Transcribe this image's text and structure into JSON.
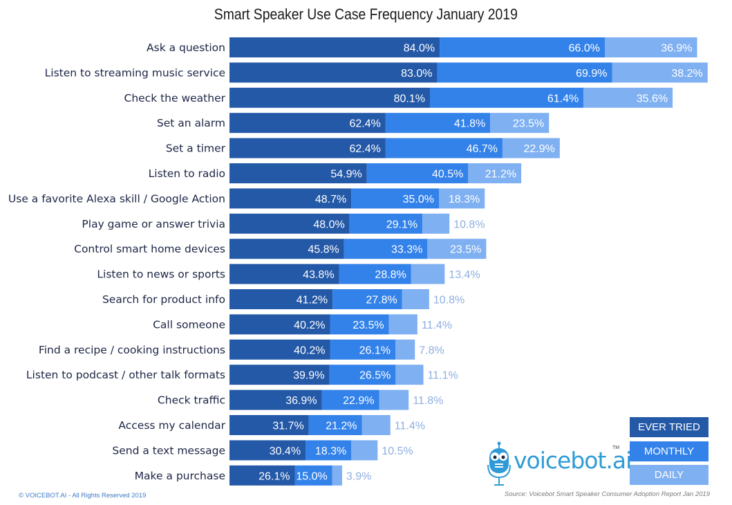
{
  "chart_data": {
    "type": "bar",
    "orientation": "horizontal",
    "stacked": true,
    "title": "Smart Speaker Use Case Frequency January 2019",
    "xlabel": "",
    "ylabel": "",
    "grid": false,
    "legend_position": "bottom-right",
    "categories": [
      "Ask a question",
      "Listen to streaming music service",
      "Check the weather",
      "Set an alarm",
      "Set a timer",
      "Listen to radio",
      "Use a favorite Alexa skill / Google Action",
      "Play game or answer trivia",
      "Control smart home devices",
      "Listen to news or sports",
      "Search for product info",
      "Call someone",
      "Find a recipe / cooking instructions",
      "Listen to podcast / other talk formats",
      "Check traffic",
      "Access my calendar",
      "Send a text message",
      "Make a purchase"
    ],
    "series": [
      {
        "name": "EVER TRIED",
        "color": "#2459a8",
        "values": [
          84.0,
          83.0,
          80.1,
          62.4,
          62.4,
          54.9,
          48.7,
          48.0,
          45.8,
          43.8,
          41.2,
          40.2,
          40.2,
          39.9,
          36.9,
          31.7,
          30.4,
          26.1
        ],
        "labels": [
          "84.0%",
          "83.0%",
          "80.1%",
          "62.4%",
          "62.4%",
          "54.9%",
          "48.7%",
          "48.0%",
          "45.8%",
          "43.8%",
          "41.2%",
          "40.2%",
          "40.2%",
          "39.9%",
          "36.9%",
          "31.7%",
          "30.4%",
          "26.1%"
        ]
      },
      {
        "name": "MONTHLY",
        "color": "#3382ea",
        "values": [
          66.0,
          69.9,
          61.4,
          41.8,
          46.7,
          40.5,
          35.0,
          29.1,
          33.3,
          28.8,
          27.8,
          23.5,
          26.1,
          26.5,
          22.9,
          21.2,
          18.3,
          15.0
        ],
        "labels": [
          "66.0%",
          "69.9%",
          "61.4%",
          "41.8%",
          "46.7%",
          "40.5%",
          "35.0%",
          "29.1%",
          "33.3%",
          "28.8%",
          "27.8%",
          "23.5%",
          "26.1%",
          "26.5%",
          "22.9%",
          "21.2%",
          "18.3%",
          "15.0%"
        ]
      },
      {
        "name": "DAILY",
        "color": "#7fb0f2",
        "values": [
          36.9,
          38.2,
          35.6,
          23.5,
          22.9,
          21.2,
          18.3,
          10.8,
          23.5,
          13.4,
          10.8,
          11.4,
          7.8,
          11.1,
          11.8,
          11.4,
          10.5,
          3.9
        ],
        "labels": [
          "36.9%",
          "38.2%",
          "35.6%",
          "23.5%",
          "22.9%",
          "21.2%",
          "18.3%",
          "10.8%",
          "23.5%",
          "13.4%",
          "10.8%",
          "11.4%",
          "7.8%",
          "11.1%",
          "11.8%",
          "11.4%",
          "10.5%",
          "3.9%"
        ]
      }
    ],
    "label_colors": {
      "inside": "#ffffff",
      "outside": "#8eaee0"
    }
  },
  "legend": {
    "items": [
      {
        "label": "EVER TRIED",
        "color": "#2459a8"
      },
      {
        "label": "MONTHLY",
        "color": "#3382ea"
      },
      {
        "label": "DAILY",
        "color": "#7fb0f2"
      }
    ]
  },
  "branding": {
    "logo_text": "voicebot.ai",
    "logo_tm": "TM",
    "logo_icon": "robot-microphone-icon",
    "brand_color": "#2f9bd6"
  },
  "footer": {
    "copyright": "© VOICEBOT.AI - All Rights Reserved 2019",
    "source": "Source: Voicebot Smart Speaker Consumer Adoption Report Jan 2019"
  }
}
